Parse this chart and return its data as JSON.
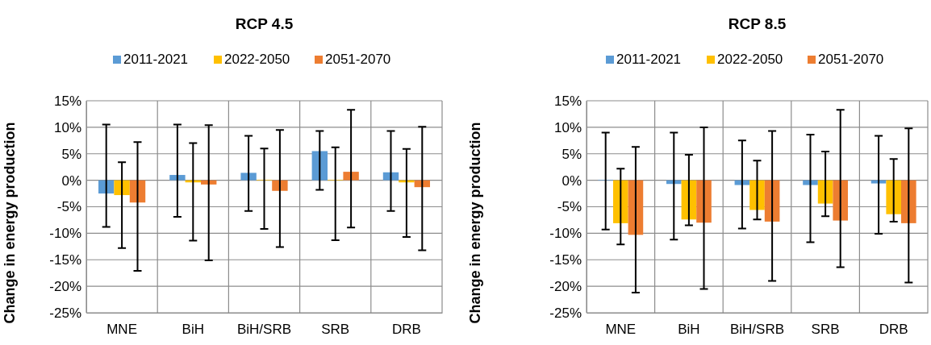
{
  "chart_data": [
    {
      "type": "bar",
      "title": "RCP 4.5",
      "ylabel": "Change in energy production",
      "categories": [
        "MNE",
        "BiH",
        "BiH/SRB",
        "SRB",
        "DRB"
      ],
      "series": [
        {
          "name": "2011-2021",
          "color": "#5b9bd5",
          "values": [
            -2.5,
            1.0,
            1.4,
            5.5,
            1.5
          ],
          "errors": [
            [
              -8.8,
              10.5
            ],
            [
              -6.9,
              10.5
            ],
            [
              -5.8,
              8.4
            ],
            [
              -1.8,
              9.3
            ],
            [
              -5.8,
              9.3
            ]
          ]
        },
        {
          "name": "2022-2050",
          "color": "#ffc000",
          "values": [
            -2.8,
            -0.4,
            0.1,
            0.1,
            -0.4
          ],
          "errors": [
            [
              -12.8,
              3.4
            ],
            [
              -11.4,
              7.0
            ],
            [
              -9.2,
              6.0
            ],
            [
              -11.3,
              6.2
            ],
            [
              -10.7,
              5.9
            ]
          ]
        },
        {
          "name": "2051-2070",
          "color": "#ed7d31",
          "values": [
            -4.2,
            -0.8,
            -2.0,
            1.6,
            -1.3
          ],
          "errors": [
            [
              -17.1,
              7.2
            ],
            [
              -15.1,
              10.4
            ],
            [
              -12.6,
              9.5
            ],
            [
              -8.9,
              13.3
            ],
            [
              -13.2,
              10.1
            ]
          ]
        }
      ],
      "ylim": [
        -25,
        15
      ],
      "yticks": [
        {
          "value": -25,
          "label": "-25%"
        },
        {
          "value": -20,
          "label": "-20%"
        },
        {
          "value": -15,
          "label": "-15%"
        },
        {
          "value": -10,
          "label": "-10%"
        },
        {
          "value": -5,
          "label": "-5%"
        },
        {
          "value": 0,
          "label": "0%"
        },
        {
          "value": 5,
          "label": "5%"
        },
        {
          "value": 10,
          "label": "10%"
        },
        {
          "value": 15,
          "label": "15%"
        }
      ],
      "grid": true,
      "legend": "top"
    },
    {
      "type": "bar",
      "title": "RCP 8.5",
      "ylabel": "Change in energy production",
      "categories": [
        "MNE",
        "BiH",
        "BiH/SRB",
        "SRB",
        "DRB"
      ],
      "series": [
        {
          "name": "2011-2021",
          "color": "#5b9bd5",
          "values": [
            0.1,
            -0.7,
            -0.9,
            -0.9,
            -0.6
          ],
          "errors": [
            [
              -9.3,
              9.0
            ],
            [
              -11.2,
              9.0
            ],
            [
              -9.1,
              7.5
            ],
            [
              -11.7,
              8.6
            ],
            [
              -10.1,
              8.4
            ]
          ]
        },
        {
          "name": "2022-2050",
          "color": "#ffc000",
          "values": [
            -8.1,
            -7.4,
            -5.6,
            -4.4,
            -6.4
          ],
          "errors": [
            [
              -12.1,
              2.2
            ],
            [
              -8.5,
              4.8
            ],
            [
              -7.4,
              3.7
            ],
            [
              -6.8,
              5.4
            ],
            [
              -7.8,
              4.0
            ]
          ]
        },
        {
          "name": "2051-2070",
          "color": "#ed7d31",
          "values": [
            -10.3,
            -8.0,
            -7.8,
            -7.6,
            -8.1
          ],
          "errors": [
            [
              -21.2,
              6.3
            ],
            [
              -20.5,
              10.0
            ],
            [
              -19.0,
              9.3
            ],
            [
              -16.4,
              13.3
            ],
            [
              -19.3,
              9.8
            ]
          ]
        }
      ],
      "ylim": [
        -25,
        15
      ],
      "yticks": [
        {
          "value": -25,
          "label": "-25%"
        },
        {
          "value": -20,
          "label": "-20%"
        },
        {
          "value": -15,
          "label": "-15%"
        },
        {
          "value": -10,
          "label": "-10%"
        },
        {
          "value": -5,
          "label": "-5%"
        },
        {
          "value": 0,
          "label": "0%"
        },
        {
          "value": 5,
          "label": "5%"
        },
        {
          "value": 10,
          "label": "10%"
        },
        {
          "value": 15,
          "label": "15%"
        }
      ],
      "grid": true,
      "legend": "top"
    }
  ]
}
